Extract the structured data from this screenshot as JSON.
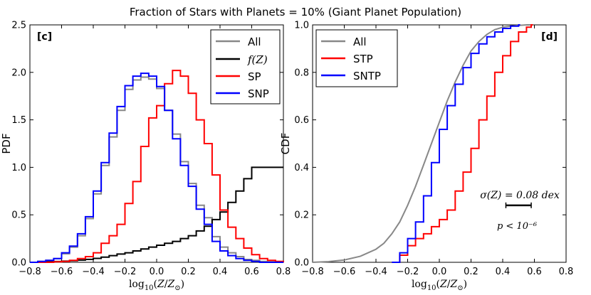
{
  "suptitle": "Fraction of Stars with Planets = 10% (Giant Planet Population)",
  "chart_data": [
    {
      "type": "line",
      "panel_label": "[c]",
      "title": "",
      "xlabel": "log10(Z/Z⊙)",
      "ylabel": "PDF",
      "xlim": [
        -0.8,
        0.8
      ],
      "ylim": [
        0,
        2.5
      ],
      "xticks": [
        -0.8,
        -0.6,
        -0.4,
        -0.2,
        0.0,
        0.2,
        0.4,
        0.6,
        0.8
      ],
      "xtick_labels": [
        "−0.8",
        "−0.6",
        "−0.4",
        "−0.2",
        "0.0",
        "0.2",
        "0.4",
        "0.6",
        "0.8"
      ],
      "yticks": [
        0,
        0.5,
        1.0,
        1.5,
        2.0,
        2.5
      ],
      "ytick_labels": [
        "0.0",
        "0.5",
        "1.0",
        "1.5",
        "2.0",
        "2.5"
      ],
      "legend_position": "top-right",
      "series": [
        {
          "name": "All",
          "color": "#888888",
          "style": "step",
          "x": [
            -0.8,
            -0.75,
            -0.7,
            -0.65,
            -0.6,
            -0.55,
            -0.5,
            -0.45,
            -0.4,
            -0.35,
            -0.3,
            -0.25,
            -0.2,
            -0.15,
            -0.1,
            -0.05,
            0.0,
            0.05,
            0.1,
            0.15,
            0.2,
            0.25,
            0.3,
            0.35,
            0.4,
            0.45,
            0.5,
            0.55,
            0.6,
            0.65,
            0.7,
            0.75,
            0.8
          ],
          "y": [
            0,
            0.01,
            0.02,
            0.04,
            0.09,
            0.16,
            0.28,
            0.46,
            0.72,
            1.02,
            1.32,
            1.6,
            1.82,
            1.92,
            1.95,
            1.93,
            1.83,
            1.6,
            1.35,
            1.06,
            0.83,
            0.6,
            0.47,
            0.27,
            0.16,
            0.1,
            0.06,
            0.03,
            0.02,
            0.01,
            0.005,
            0,
            0
          ]
        },
        {
          "name": "f(Z)",
          "color": "#000000",
          "style": "step",
          "x": [
            -0.8,
            -0.75,
            -0.7,
            -0.65,
            -0.6,
            -0.55,
            -0.5,
            -0.45,
            -0.4,
            -0.35,
            -0.3,
            -0.25,
            -0.2,
            -0.15,
            -0.1,
            -0.05,
            0.0,
            0.05,
            0.1,
            0.15,
            0.2,
            0.25,
            0.3,
            0.35,
            0.4,
            0.45,
            0.5,
            0.55,
            0.6,
            0.65,
            0.7,
            0.75,
            0.8
          ],
          "y": [
            0,
            0.003,
            0.005,
            0.008,
            0.012,
            0.017,
            0.023,
            0.031,
            0.041,
            0.054,
            0.07,
            0.087,
            0.1,
            0.12,
            0.14,
            0.16,
            0.18,
            0.2,
            0.22,
            0.25,
            0.28,
            0.33,
            0.38,
            0.45,
            0.53,
            0.63,
            0.75,
            0.88,
            1.0,
            1.0,
            1.0,
            1.0,
            1.0
          ]
        },
        {
          "name": "SP",
          "color": "#ff0000",
          "style": "step",
          "x": [
            -0.8,
            -0.75,
            -0.7,
            -0.65,
            -0.6,
            -0.55,
            -0.5,
            -0.45,
            -0.4,
            -0.35,
            -0.3,
            -0.25,
            -0.2,
            -0.15,
            -0.1,
            -0.05,
            0.0,
            0.05,
            0.1,
            0.15,
            0.2,
            0.25,
            0.3,
            0.35,
            0.4,
            0.45,
            0.5,
            0.55,
            0.6,
            0.65,
            0.7,
            0.75,
            0.8
          ],
          "y": [
            0,
            0,
            0,
            0.005,
            0.01,
            0.02,
            0.04,
            0.06,
            0.1,
            0.2,
            0.28,
            0.4,
            0.62,
            0.85,
            1.22,
            1.52,
            1.65,
            1.88,
            2.02,
            1.96,
            1.78,
            1.5,
            1.25,
            0.92,
            0.55,
            0.37,
            0.25,
            0.15,
            0.08,
            0.04,
            0.02,
            0.01,
            0
          ]
        },
        {
          "name": "SNP",
          "color": "#0000ff",
          "style": "step",
          "x": [
            -0.8,
            -0.75,
            -0.7,
            -0.65,
            -0.6,
            -0.55,
            -0.5,
            -0.45,
            -0.4,
            -0.35,
            -0.3,
            -0.25,
            -0.2,
            -0.15,
            -0.1,
            -0.05,
            0.0,
            0.05,
            0.1,
            0.15,
            0.2,
            0.25,
            0.3,
            0.35,
            0.4,
            0.45,
            0.5,
            0.55,
            0.6,
            0.65,
            0.7,
            0.75,
            0.8
          ],
          "y": [
            0,
            0.01,
            0.02,
            0.04,
            0.1,
            0.17,
            0.3,
            0.48,
            0.75,
            1.05,
            1.36,
            1.64,
            1.86,
            1.96,
            1.99,
            1.96,
            1.85,
            1.6,
            1.3,
            1.02,
            0.8,
            0.56,
            0.4,
            0.22,
            0.12,
            0.07,
            0.04,
            0.02,
            0.01,
            0,
            0,
            0,
            0
          ]
        }
      ]
    },
    {
      "type": "line",
      "panel_label": "[d]",
      "title": "",
      "xlabel": "log10(Z/Z⊙)",
      "ylabel": "CDF",
      "xlim": [
        -0.8,
        0.8
      ],
      "ylim": [
        0,
        1.0
      ],
      "xticks": [
        -0.8,
        -0.6,
        -0.4,
        -0.2,
        0.0,
        0.2,
        0.4,
        0.6,
        0.8
      ],
      "xtick_labels": [
        "−0.8",
        "−0.6",
        "−0.4",
        "−0.2",
        "0.0",
        "0.2",
        "0.4",
        "0.6",
        "0.8"
      ],
      "yticks": [
        0,
        0.2,
        0.4,
        0.6,
        0.8,
        1.0
      ],
      "ytick_labels": [
        "0.0",
        "0.2",
        "0.4",
        "0.6",
        "0.8",
        "1.0"
      ],
      "legend_position": "top-left",
      "annotation": {
        "sigma_label": "σ(Z) = 0.08 dex",
        "sigma_x_range": [
          0.42,
          0.58
        ],
        "sigma_y": 0.24,
        "p_label": "p < 10⁻⁶"
      },
      "series": [
        {
          "name": "All",
          "color": "#888888",
          "style": "line",
          "x": [
            -0.8,
            -0.7,
            -0.6,
            -0.5,
            -0.4,
            -0.35,
            -0.3,
            -0.25,
            -0.2,
            -0.15,
            -0.1,
            -0.05,
            0.0,
            0.05,
            0.1,
            0.15,
            0.2,
            0.25,
            0.3,
            0.35,
            0.4,
            0.45,
            0.5,
            0.55
          ],
          "y": [
            0,
            0.003,
            0.01,
            0.025,
            0.055,
            0.08,
            0.12,
            0.17,
            0.24,
            0.32,
            0.41,
            0.5,
            0.59,
            0.68,
            0.76,
            0.83,
            0.89,
            0.93,
            0.96,
            0.98,
            0.99,
            0.995,
            0.998,
            1.0
          ]
        },
        {
          "name": "STP",
          "color": "#ff0000",
          "style": "step",
          "x": [
            -0.3,
            -0.25,
            -0.2,
            -0.15,
            -0.1,
            -0.05,
            0.0,
            0.05,
            0.1,
            0.15,
            0.2,
            0.25,
            0.3,
            0.35,
            0.4,
            0.45,
            0.5,
            0.55,
            0.58
          ],
          "y": [
            0,
            0.03,
            0.07,
            0.1,
            0.12,
            0.15,
            0.18,
            0.22,
            0.3,
            0.38,
            0.48,
            0.6,
            0.7,
            0.8,
            0.87,
            0.93,
            0.97,
            0.99,
            1.0
          ]
        },
        {
          "name": "SNTP",
          "color": "#0000ff",
          "style": "step",
          "x": [
            -0.3,
            -0.25,
            -0.2,
            -0.15,
            -0.1,
            -0.05,
            0.0,
            0.05,
            0.1,
            0.15,
            0.2,
            0.25,
            0.3,
            0.35,
            0.4,
            0.45,
            0.5
          ],
          "y": [
            0,
            0.04,
            0.1,
            0.17,
            0.28,
            0.42,
            0.56,
            0.66,
            0.75,
            0.82,
            0.88,
            0.92,
            0.95,
            0.97,
            0.985,
            0.995,
            1.0
          ]
        }
      ]
    }
  ]
}
